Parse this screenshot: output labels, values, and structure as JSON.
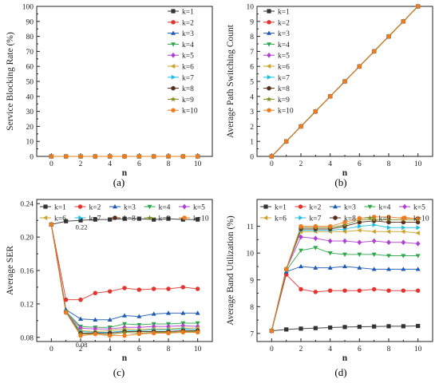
{
  "figure": {
    "panel_labels": [
      "(a)",
      "(b)",
      "(c)",
      "(d)"
    ]
  },
  "chart_data": [
    {
      "type": "scatter",
      "panel": "(a)",
      "xlabel": "n",
      "ylabel": "Service Blocking Rate (%)",
      "xlim": [
        -1,
        11
      ],
      "ylim": [
        0,
        100
      ],
      "xticks": [
        0,
        2,
        4,
        6,
        8,
        10
      ],
      "yticks": [
        0,
        10,
        20,
        30,
        40,
        50,
        60,
        70,
        80,
        90,
        100
      ],
      "grid": false,
      "legend": {
        "placement": "top-right",
        "columns": 1
      },
      "x": [
        0,
        1,
        2,
        3,
        4,
        5,
        6,
        7,
        8,
        9,
        10
      ],
      "series": [
        {
          "name": "k=1",
          "color": "#333333",
          "marker": "square",
          "values": [
            0,
            0,
            0,
            0,
            0,
            0,
            0,
            0,
            0,
            0,
            0
          ]
        },
        {
          "name": "k=2",
          "color": "#e3342f",
          "marker": "circle",
          "values": [
            0,
            0,
            0,
            0,
            0,
            0,
            0,
            0,
            0,
            0,
            0
          ]
        },
        {
          "name": "k=3",
          "color": "#1f5bb5",
          "marker": "triangle-up",
          "values": [
            0,
            0,
            0,
            0,
            0,
            0,
            0,
            0,
            0,
            0,
            0
          ]
        },
        {
          "name": "k=4",
          "color": "#2da84a",
          "marker": "triangle-down",
          "values": [
            0,
            0,
            0,
            0,
            0,
            0,
            0,
            0,
            0,
            0,
            0
          ]
        },
        {
          "name": "k=5",
          "color": "#b13fd1",
          "marker": "diamond",
          "values": [
            0,
            0,
            0,
            0,
            0,
            0,
            0,
            0,
            0,
            0,
            0
          ]
        },
        {
          "name": "k=6",
          "color": "#c9a227",
          "marker": "triangle-left",
          "values": [
            0,
            0,
            0,
            0,
            0,
            0,
            0,
            0,
            0,
            0,
            0
          ]
        },
        {
          "name": "k=7",
          "color": "#1fbde0",
          "marker": "triangle-right",
          "values": [
            0,
            0,
            0,
            0,
            0,
            0,
            0,
            0,
            0,
            0,
            0
          ]
        },
        {
          "name": "k=8",
          "color": "#5a2d1a",
          "marker": "hexagon",
          "values": [
            0,
            0,
            0,
            0,
            0,
            0,
            0,
            0,
            0,
            0,
            0
          ]
        },
        {
          "name": "k=9",
          "color": "#7d8a1c",
          "marker": "star",
          "values": [
            0,
            0,
            0,
            0,
            0,
            0,
            0,
            0,
            0,
            0,
            0
          ]
        },
        {
          "name": "k=10",
          "color": "#f07b1d",
          "marker": "circle",
          "values": [
            0,
            0,
            0,
            0,
            0,
            0,
            0,
            0,
            0,
            0,
            0
          ]
        }
      ]
    },
    {
      "type": "line",
      "panel": "(b)",
      "xlabel": "n",
      "ylabel": "Average Path Switching Count",
      "xlim": [
        -1,
        11
      ],
      "ylim": [
        0,
        10
      ],
      "xticks": [
        0,
        2,
        4,
        6,
        8,
        10
      ],
      "yticks": [
        0,
        1,
        2,
        3,
        4,
        5,
        6,
        7,
        8,
        9,
        10
      ],
      "grid": false,
      "legend": {
        "placement": "top-left",
        "columns": 1
      },
      "x": [
        0,
        1,
        2,
        3,
        4,
        5,
        6,
        7,
        8,
        9,
        10
      ],
      "series": [
        {
          "name": "k=1",
          "color": "#333333",
          "marker": "square",
          "values": [
            0,
            1,
            2,
            3,
            4,
            5,
            6,
            7,
            8,
            9,
            10
          ]
        },
        {
          "name": "k=2",
          "color": "#e3342f",
          "marker": "circle",
          "values": [
            0,
            1,
            2,
            3,
            4,
            5,
            6,
            7,
            8,
            9,
            10
          ]
        },
        {
          "name": "k=3",
          "color": "#1f5bb5",
          "marker": "triangle-up",
          "values": [
            0,
            1,
            2,
            3,
            4,
            5,
            6,
            7,
            8,
            9,
            10
          ]
        },
        {
          "name": "k=4",
          "color": "#2da84a",
          "marker": "triangle-down",
          "values": [
            0,
            1,
            2,
            3,
            4,
            5,
            6,
            7,
            8,
            9,
            10
          ]
        },
        {
          "name": "k=5",
          "color": "#b13fd1",
          "marker": "diamond",
          "values": [
            0,
            1,
            2,
            3,
            4,
            5,
            6,
            7,
            8,
            9,
            10
          ]
        },
        {
          "name": "k=6",
          "color": "#c9a227",
          "marker": "triangle-left",
          "values": [
            0,
            1,
            2,
            3,
            4,
            5,
            6,
            7,
            8,
            9,
            10
          ]
        },
        {
          "name": "k=7",
          "color": "#1fbde0",
          "marker": "triangle-right",
          "values": [
            0,
            1,
            2,
            3,
            4,
            5,
            6,
            7,
            8,
            9,
            10
          ]
        },
        {
          "name": "k=8",
          "color": "#5a2d1a",
          "marker": "hexagon",
          "values": [
            0,
            1,
            2,
            3,
            4,
            5,
            6,
            7,
            8,
            9,
            10
          ]
        },
        {
          "name": "k=9",
          "color": "#7d8a1c",
          "marker": "star",
          "values": [
            0,
            1,
            2,
            3,
            4,
            5,
            6,
            7,
            8,
            9,
            10
          ]
        },
        {
          "name": "k=10",
          "color": "#f07b1d",
          "marker": "circle",
          "values": [
            0,
            1,
            2,
            3,
            4,
            5,
            6,
            7,
            8,
            9,
            10
          ]
        }
      ]
    },
    {
      "type": "line",
      "panel": "(c)",
      "xlabel": "n",
      "ylabel": "Average SER",
      "xlim": [
        -1,
        11
      ],
      "ylim": [
        0.075,
        0.245
      ],
      "xticks": [
        0,
        2,
        4,
        6,
        8,
        10
      ],
      "yticks": [
        0.08,
        0.12,
        0.16,
        0.2,
        0.24
      ],
      "ytick_labels": [
        "0.08",
        "0.12",
        "0.16",
        "0.20",
        "0.24"
      ],
      "grid": false,
      "legend": {
        "placement": "top",
        "columns": 5
      },
      "annotations": [
        {
          "text": "0.22",
          "x": 2,
          "y": 0.2205
        },
        {
          "text": "0.08",
          "x": 2,
          "y": 0.0815
        }
      ],
      "x": [
        0,
        1,
        2,
        3,
        4,
        5,
        6,
        7,
        8,
        9,
        10
      ],
      "series": [
        {
          "name": "k=1",
          "color": "#333333",
          "marker": "square",
          "values": [
            0.215,
            0.219,
            0.22,
            0.221,
            0.221,
            0.222,
            0.222,
            0.221,
            0.222,
            0.221,
            0.221
          ]
        },
        {
          "name": "k=2",
          "color": "#e3342f",
          "marker": "circle",
          "values": [
            0.215,
            0.125,
            0.125,
            0.133,
            0.135,
            0.139,
            0.137,
            0.138,
            0.138,
            0.14,
            0.138
          ]
        },
        {
          "name": "k=3",
          "color": "#1f5bb5",
          "marker": "triangle-up",
          "values": [
            0.215,
            0.113,
            0.102,
            0.101,
            0.101,
            0.106,
            0.105,
            0.108,
            0.109,
            0.109,
            0.109
          ]
        },
        {
          "name": "k=4",
          "color": "#2da84a",
          "marker": "triangle-down",
          "values": [
            0.215,
            0.111,
            0.093,
            0.092,
            0.092,
            0.096,
            0.095,
            0.096,
            0.096,
            0.097,
            0.097
          ]
        },
        {
          "name": "k=5",
          "color": "#b13fd1",
          "marker": "diamond",
          "values": [
            0.215,
            0.11,
            0.091,
            0.09,
            0.09,
            0.092,
            0.092,
            0.093,
            0.093,
            0.094,
            0.093
          ]
        },
        {
          "name": "k=6",
          "color": "#c9a227",
          "marker": "triangle-left",
          "values": [
            0.215,
            0.11,
            0.088,
            0.087,
            0.088,
            0.09,
            0.089,
            0.09,
            0.09,
            0.091,
            0.091
          ]
        },
        {
          "name": "k=7",
          "color": "#1fbde0",
          "marker": "triangle-right",
          "values": [
            0.215,
            0.11,
            0.087,
            0.086,
            0.086,
            0.088,
            0.088,
            0.089,
            0.089,
            0.09,
            0.089
          ]
        },
        {
          "name": "k=8",
          "color": "#5a2d1a",
          "marker": "hexagon",
          "values": [
            0.215,
            0.11,
            0.085,
            0.085,
            0.085,
            0.087,
            0.087,
            0.087,
            0.087,
            0.088,
            0.088
          ]
        },
        {
          "name": "k=9",
          "color": "#7d8a1c",
          "marker": "star",
          "values": [
            0.215,
            0.11,
            0.084,
            0.084,
            0.083,
            0.086,
            0.085,
            0.086,
            0.086,
            0.087,
            0.087
          ]
        },
        {
          "name": "k=10",
          "color": "#f07b1d",
          "marker": "circle",
          "values": [
            0.215,
            0.11,
            0.082,
            0.084,
            0.082,
            0.082,
            0.084,
            0.085,
            0.085,
            0.086,
            0.086
          ]
        }
      ]
    },
    {
      "type": "line",
      "panel": "(d)",
      "xlabel": "n",
      "ylabel": "Average Band Utilization (%)",
      "xlim": [
        -1,
        11
      ],
      "ylim": [
        6.7,
        12.0
      ],
      "xticks": [
        0,
        2,
        4,
        6,
        8,
        10
      ],
      "yticks": [
        7,
        8,
        9,
        10,
        11
      ],
      "grid": false,
      "legend": {
        "placement": "top",
        "columns": 5
      },
      "x": [
        0,
        1,
        2,
        3,
        4,
        5,
        6,
        7,
        8,
        9,
        10
      ],
      "series": [
        {
          "name": "k=1",
          "color": "#333333",
          "marker": "square",
          "values": [
            7.1,
            7.15,
            7.18,
            7.2,
            7.22,
            7.24,
            7.25,
            7.26,
            7.27,
            7.27,
            7.28
          ]
        },
        {
          "name": "k=2",
          "color": "#e3342f",
          "marker": "circle",
          "values": [
            7.1,
            9.2,
            8.65,
            8.55,
            8.6,
            8.6,
            8.6,
            8.65,
            8.6,
            8.6,
            8.6
          ]
        },
        {
          "name": "k=3",
          "color": "#1f5bb5",
          "marker": "triangle-up",
          "values": [
            7.1,
            9.3,
            9.5,
            9.45,
            9.45,
            9.5,
            9.45,
            9.4,
            9.4,
            9.4,
            9.4
          ]
        },
        {
          "name": "k=4",
          "color": "#2da84a",
          "marker": "triangle-down",
          "values": [
            7.1,
            9.35,
            10.1,
            10.2,
            10.0,
            9.95,
            9.95,
            9.95,
            9.9,
            9.9,
            9.9
          ]
        },
        {
          "name": "k=5",
          "color": "#b13fd1",
          "marker": "diamond",
          "values": [
            7.1,
            9.4,
            10.6,
            10.55,
            10.45,
            10.45,
            10.4,
            10.45,
            10.4,
            10.4,
            10.35
          ]
        },
        {
          "name": "k=6",
          "color": "#c9a227",
          "marker": "triangle-left",
          "values": [
            7.1,
            9.4,
            10.8,
            10.8,
            10.8,
            10.8,
            10.85,
            10.8,
            10.8,
            10.8,
            10.75
          ]
        },
        {
          "name": "k=7",
          "color": "#1fbde0",
          "marker": "triangle-right",
          "values": [
            7.1,
            9.4,
            10.85,
            10.85,
            10.85,
            10.9,
            11.0,
            11.05,
            10.95,
            10.95,
            10.95
          ]
        },
        {
          "name": "k=8",
          "color": "#5a2d1a",
          "marker": "hexagon",
          "values": [
            7.1,
            9.4,
            10.9,
            10.9,
            10.9,
            11.0,
            11.15,
            11.2,
            11.15,
            11.15,
            11.15
          ]
        },
        {
          "name": "k=9",
          "color": "#7d8a1c",
          "marker": "star",
          "values": [
            7.1,
            9.4,
            10.95,
            10.95,
            10.95,
            11.05,
            11.25,
            11.25,
            11.25,
            11.25,
            11.25
          ]
        },
        {
          "name": "k=10",
          "color": "#f07b1d",
          "marker": "circle",
          "values": [
            7.1,
            9.4,
            11.0,
            11.0,
            11.0,
            11.15,
            11.3,
            11.35,
            11.35,
            11.3,
            11.3
          ]
        }
      ]
    }
  ]
}
